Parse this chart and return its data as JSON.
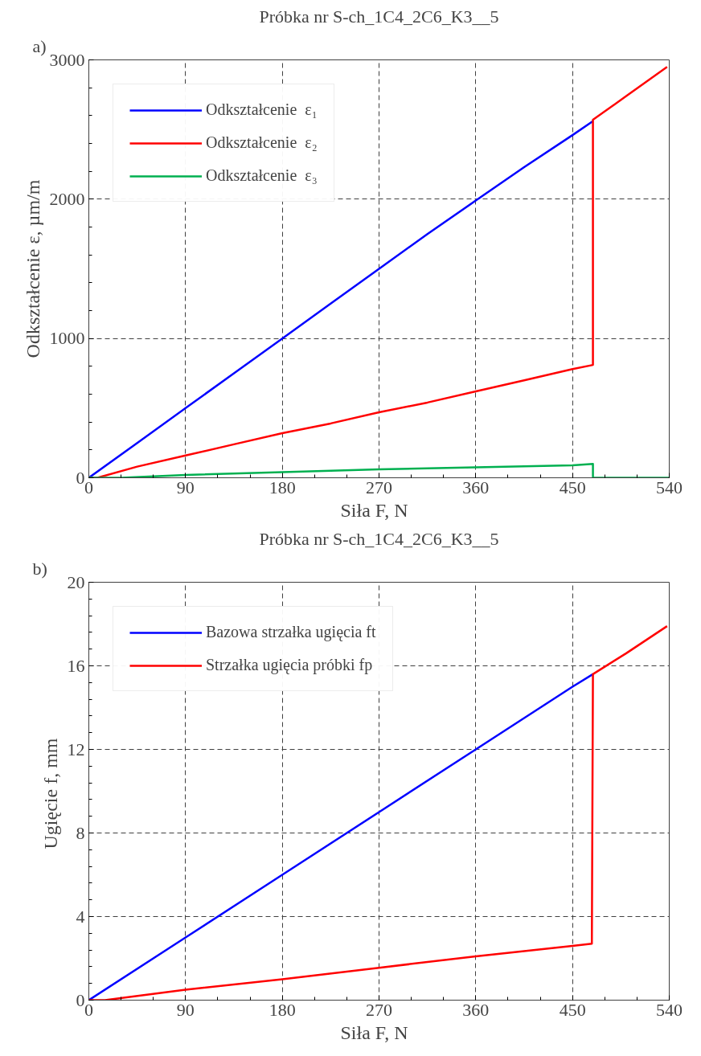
{
  "chart_data": [
    {
      "type": "line",
      "title": "Próbka nr S-ch_1C4_2C6_K3__5",
      "xlabel": "Siła  F,  N",
      "ylabel": "Odkształcenie ε, µm/m",
      "annotations": [
        "a)"
      ],
      "xlim": [
        0,
        540
      ],
      "xticks": [
        0,
        90,
        180,
        270,
        360,
        450,
        540
      ],
      "ylim": [
        0,
        3000
      ],
      "yticks": [
        0,
        1000,
        2000,
        3000
      ],
      "grid": true,
      "legend": "top left",
      "series": [
        {
          "name": "Odkształcenie  ε₁",
          "color": "#0000ff",
          "x": [
            0,
            45,
            90,
            135,
            180,
            225,
            270,
            315,
            360,
            405,
            450,
            469
          ],
          "values": [
            0,
            250,
            500,
            750,
            1000,
            1250,
            1500,
            1750,
            1990,
            2230,
            2460,
            2560
          ]
        },
        {
          "name": "Odkształcenie  ε₂",
          "color": "#ff0000",
          "x": [
            0,
            8,
            45,
            90,
            135,
            180,
            225,
            270,
            315,
            360,
            405,
            450,
            469,
            469,
            500,
            538
          ],
          "values": [
            0,
            0,
            80,
            160,
            240,
            320,
            390,
            470,
            540,
            620,
            700,
            780,
            810,
            2570,
            2740,
            2950
          ]
        },
        {
          "name": "Odkształcenie  ε₃",
          "color": "#00b050",
          "x": [
            0,
            30,
            90,
            180,
            270,
            360,
            450,
            469,
            469,
            540
          ],
          "values": [
            0,
            0,
            20,
            40,
            60,
            75,
            90,
            100,
            0,
            0
          ]
        }
      ]
    },
    {
      "type": "line",
      "title": "Próbka nr S-ch_1C4_2C6_K3__5",
      "xlabel": "Siła  F,  N",
      "ylabel": "Ugięcie  f, mm",
      "annotations": [
        "b)"
      ],
      "xlim": [
        0,
        540
      ],
      "xticks": [
        0,
        90,
        180,
        270,
        360,
        450,
        540
      ],
      "ylim": [
        0,
        20
      ],
      "yticks": [
        0,
        4,
        8,
        12,
        16,
        20
      ],
      "grid": true,
      "legend": "top left",
      "series": [
        {
          "name": "Bazowa strzałka ugięcia ft",
          "color": "#0000ff",
          "x": [
            0,
            90,
            180,
            270,
            360,
            450,
            469
          ],
          "values": [
            0,
            3,
            6,
            9,
            12,
            15,
            15.6
          ]
        },
        {
          "name": "Strzałka ugięcia próbki fp",
          "color": "#ff0000",
          "x": [
            0,
            15,
            90,
            180,
            270,
            360,
            450,
            468,
            469,
            500,
            538
          ],
          "values": [
            0,
            0,
            0.5,
            1.0,
            1.55,
            2.1,
            2.6,
            2.7,
            15.6,
            16.6,
            17.9
          ]
        }
      ]
    }
  ]
}
